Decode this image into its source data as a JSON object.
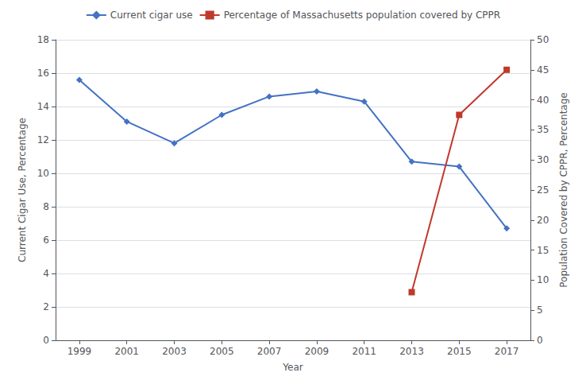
{
  "chart_data": {
    "type": "line",
    "xlabel": "Year",
    "ylabel": "Current Cigar Use, Percentage",
    "y2label": "Population Covered by CPPR, Percentage",
    "xlim": [
      1998,
      2018
    ],
    "xticks": [
      1999,
      2001,
      2003,
      2005,
      2007,
      2009,
      2011,
      2013,
      2015,
      2017
    ],
    "ylim": [
      0,
      18
    ],
    "yticks": [
      0,
      2,
      4,
      6,
      8,
      10,
      12,
      14,
      16,
      18
    ],
    "y2lim": [
      0,
      50
    ],
    "y2ticks": [
      0,
      5,
      10,
      15,
      20,
      25,
      30,
      35,
      40,
      45,
      50
    ],
    "grid": "y",
    "legend": "top",
    "series": [
      {
        "name": "Current cigar use",
        "color": "#4472C4",
        "marker": "diamond",
        "x": [
          1999,
          2001,
          2003,
          2005,
          2007,
          2009,
          2011,
          2013,
          2015,
          2017
        ],
        "values": [
          15.6,
          13.1,
          11.8,
          13.5,
          14.6,
          14.9,
          14.3,
          10.7,
          10.4,
          6.7
        ]
      },
      {
        "name": "Percentage of Massachusetts population covered by CPPR",
        "color": "#C0392B",
        "marker": "square",
        "axis": "y2",
        "x": [
          2013,
          2015,
          2017
        ],
        "values": [
          8.0,
          37.5,
          45.0
        ]
      }
    ]
  }
}
